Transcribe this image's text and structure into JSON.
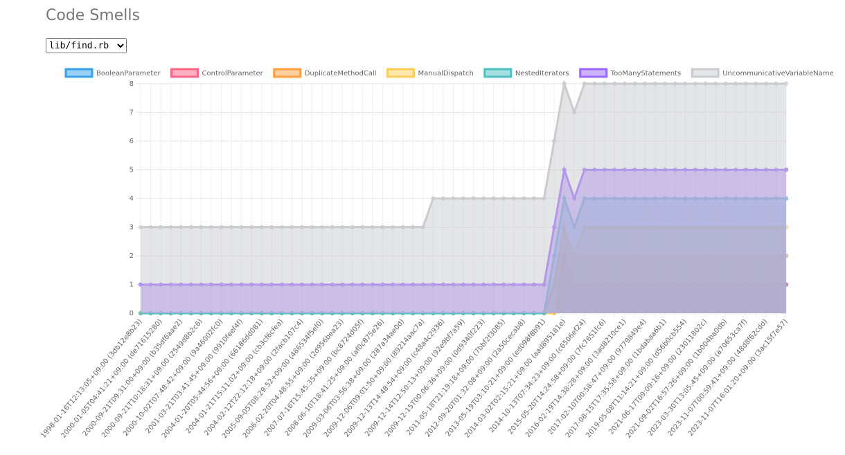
{
  "header": {
    "title": "Code Smells"
  },
  "file_select": {
    "selected": "lib/find.rb"
  },
  "chart_data": {
    "type": "line",
    "fill": true,
    "categories": [
      "1998-01-16T12:13:05+09:00 (3db12e8b23)",
      null,
      "2000-01-05T04:41:21+09:00 (de71615280)",
      null,
      "2000-09-21T09:31:00+09:00 (b35df6aae2)",
      null,
      "2000-09-21T10:18:31+09:00 (2549d8b2c6)",
      null,
      "2000-10-02T07:48:42+09:00 (9a46002fc0)",
      null,
      "2001-03-21T03:41:45+09:00 (9910feef4f)",
      null,
      "2004-01-20T05:44:56+09:00 (66186dd081)",
      null,
      "2004-01-21T15:11:02+09:00 (cb3cf6cfea)",
      null,
      "2004-02-12T22:12:18+09:00 (2facb107c4)",
      null,
      "2005-09-05T08:29:52+09:00 (486534f5ef0)",
      null,
      "2006-02-20T04:48:55+09:00 (2d956bea23)",
      null,
      "2007-07-16T15:45:35+09:00 (bc8724d05f)",
      null,
      "2008-06-10T18:41:25+09:00 (af0c875e26)",
      null,
      "2009-03-06T03:56:38+09:00 (287a34ae0d)",
      null,
      "2009-12-06T09:01:50+09:00 (89214aac7a)",
      null,
      "2009-12-13T14:48:54+09:00 (c48a4c2936)",
      null,
      "2009-12-14T12:50:13+09:00 (92e9bf7a59)",
      null,
      "2009-12-15T00:06:36+09:00 (0d9340f223)",
      null,
      "2011-05-18T21:19:18+09:00 (7bbf2f3085)",
      null,
      "2012-09-20T01:32:08+09:00 (2a50cecab8)",
      null,
      "2013-05-19T03:10:21+09:00 (ed098f8b91)",
      null,
      "2014-03-02T02:15:21+09:00 (aad895181e)",
      null,
      "2014-10-13T07:34:23+09:00 (c6506ef24)",
      null,
      "2015-05-20T14:24:58+09:00 (7fc7651fc6)",
      null,
      "2016-02-19T14:38:28+09:00 (3ad8210ce1)",
      null,
      "2017-02-10T00:58:47+09:00 (9779849e4)",
      null,
      "2017-08-15T17:35:58+09:00 (1bdabaa6b1)",
      null,
      "2019-05-08T11:14:21+09:00 (d56b0cb554)",
      null,
      "2021-06-17T09:09:16+09:00 (23011802c)",
      null,
      "2021-09-02T16:57:26+09:00 (1b004ba0db)",
      null,
      "2023-03-30T13:05:45+09:00 (a70653ca7f)",
      null,
      "2023-11-07T00:59:41+09:00 (48d8f62cdd)",
      null,
      "2023-11-07T16:01:20+09:00 (3ac15f7e57)"
    ],
    "series": [
      {
        "name": "BooleanParameter",
        "color": "#36a2eb",
        "values": [
          0,
          0,
          0,
          0,
          0,
          0,
          0,
          0,
          0,
          0,
          0,
          0,
          0,
          0,
          0,
          0,
          0,
          0,
          0,
          0,
          0,
          0,
          0,
          0,
          0,
          0,
          0,
          0,
          0,
          0,
          0,
          0,
          0,
          0,
          0,
          0,
          0,
          0,
          0,
          0,
          0,
          0,
          1,
          1,
          1,
          1,
          1,
          1,
          1,
          1,
          1,
          1,
          1,
          1,
          1,
          1,
          1,
          1,
          1,
          1,
          1,
          1,
          1,
          1,
          1
        ]
      },
      {
        "name": "ControlParameter",
        "color": "#ff6384",
        "values": [
          0,
          0,
          0,
          0,
          0,
          0,
          0,
          0,
          0,
          0,
          0,
          0,
          0,
          0,
          0,
          0,
          0,
          0,
          0,
          0,
          0,
          0,
          0,
          0,
          0,
          0,
          0,
          0,
          0,
          0,
          0,
          0,
          0,
          0,
          0,
          0,
          0,
          0,
          0,
          0,
          0,
          0,
          2,
          1,
          1,
          1,
          1,
          1,
          1,
          1,
          1,
          1,
          1,
          1,
          1,
          1,
          1,
          1,
          1,
          1,
          1,
          1,
          1,
          1,
          1
        ]
      },
      {
        "name": "DuplicateMethodCall",
        "color": "#ff9f40",
        "values": [
          0,
          0,
          0,
          0,
          0,
          0,
          0,
          0,
          0,
          0,
          0,
          0,
          0,
          0,
          0,
          0,
          0,
          0,
          0,
          0,
          0,
          0,
          0,
          0,
          0,
          0,
          0,
          0,
          0,
          0,
          0,
          0,
          0,
          0,
          0,
          0,
          0,
          0,
          0,
          0,
          0,
          1,
          3,
          2,
          2,
          2,
          2,
          2,
          2,
          2,
          2,
          2,
          2,
          2,
          2,
          2,
          2,
          2,
          2,
          2,
          2,
          2,
          2,
          2,
          2
        ]
      },
      {
        "name": "ManualDispatch",
        "color": "#ffcd56",
        "values": [
          0,
          0,
          0,
          0,
          0,
          0,
          0,
          0,
          0,
          0,
          0,
          0,
          0,
          0,
          0,
          0,
          0,
          0,
          0,
          0,
          0,
          0,
          0,
          0,
          0,
          0,
          0,
          0,
          0,
          0,
          0,
          0,
          0,
          0,
          0,
          0,
          0,
          0,
          0,
          0,
          0,
          0,
          3,
          2,
          3,
          3,
          3,
          3,
          3,
          3,
          3,
          3,
          3,
          3,
          3,
          3,
          3,
          3,
          3,
          3,
          3,
          3,
          3,
          3,
          3
        ]
      },
      {
        "name": "NestedIterators",
        "color": "#4bc0c0",
        "values": [
          0,
          0,
          0,
          0,
          0,
          0,
          0,
          0,
          0,
          0,
          0,
          0,
          0,
          0,
          0,
          0,
          0,
          0,
          0,
          0,
          0,
          0,
          0,
          0,
          0,
          0,
          0,
          0,
          0,
          0,
          0,
          0,
          0,
          0,
          0,
          0,
          0,
          0,
          0,
          0,
          0,
          2,
          4,
          3,
          4,
          4,
          4,
          4,
          4,
          4,
          4,
          4,
          4,
          4,
          4,
          4,
          4,
          4,
          4,
          4,
          4,
          4,
          4,
          4,
          4
        ]
      },
      {
        "name": "TooManyStatements",
        "color": "#9966ff",
        "values": [
          1,
          1,
          1,
          1,
          1,
          1,
          1,
          1,
          1,
          1,
          1,
          1,
          1,
          1,
          1,
          1,
          1,
          1,
          1,
          1,
          1,
          1,
          1,
          1,
          1,
          1,
          1,
          1,
          1,
          1,
          1,
          1,
          1,
          1,
          1,
          1,
          1,
          1,
          1,
          1,
          1,
          3,
          5,
          4,
          5,
          5,
          5,
          5,
          5,
          5,
          5,
          5,
          5,
          5,
          5,
          5,
          5,
          5,
          5,
          5,
          5,
          5,
          5,
          5,
          5
        ]
      },
      {
        "name": "UncommunicativeVariableName",
        "color": "#c9cbcf",
        "values": [
          3,
          3,
          3,
          3,
          3,
          3,
          3,
          3,
          3,
          3,
          3,
          3,
          3,
          3,
          3,
          3,
          3,
          3,
          3,
          3,
          3,
          3,
          3,
          3,
          3,
          3,
          3,
          3,
          3,
          4,
          4,
          4,
          4,
          4,
          4,
          4,
          4,
          4,
          4,
          4,
          4,
          6,
          8,
          7,
          8,
          8,
          8,
          8,
          8,
          8,
          8,
          8,
          8,
          8,
          8,
          8,
          8,
          8,
          8,
          8,
          8,
          8,
          8,
          8,
          8
        ]
      }
    ],
    "ylim": [
      0,
      8
    ],
    "yticks": [
      0,
      1,
      2,
      3,
      4,
      5,
      6,
      7,
      8
    ],
    "grid": true,
    "legend": "top"
  }
}
